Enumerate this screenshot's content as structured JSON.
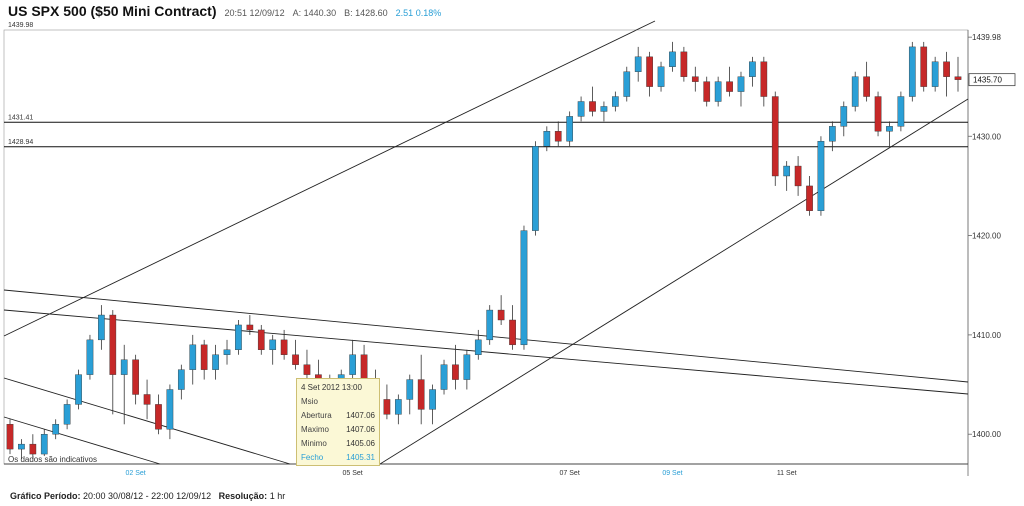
{
  "header": {
    "title": "US SPX 500 ($50 Mini Contract)",
    "time": "20:51 12/09/12",
    "ask": "A: 1440.30",
    "bid": "B: 1428.60",
    "change": "2.51 0.18%"
  },
  "tooltip": {
    "datetime": "4 Set 2012 13:00",
    "subtitle": "Msio",
    "rows": [
      {
        "label": "Abertura",
        "value": "1407.06"
      },
      {
        "label": "Maximo",
        "value": "1407.06"
      },
      {
        "label": "Minimo",
        "value": "1405.06"
      },
      {
        "label": "Fecho",
        "value": "1405.31"
      }
    ]
  },
  "footer": {
    "period_label": "Gráfico Período:",
    "period_value": "20:00 30/08/12 - 22:00 12/09/12",
    "resolution_label": "Resolução:",
    "resolution_value": "1 hr"
  },
  "chart_data": {
    "type": "candlestick",
    "y_ticks": [
      "1439.98",
      "1430.00",
      "1420.00",
      "1410.00",
      "1400.00"
    ],
    "ylim": [
      1397.0,
      1440.7
    ],
    "x_labels": [
      {
        "label": "02 Set",
        "index": 11,
        "accent": true
      },
      {
        "label": "05 Set",
        "index": 30,
        "accent": false
      },
      {
        "label": "07 Set",
        "index": 49,
        "accent": false
      },
      {
        "label": "09 Set",
        "index": 58,
        "accent": true
      },
      {
        "label": "11 Set",
        "index": 68,
        "accent": false
      }
    ],
    "last_price": "1435.70",
    "last_price_value": 1435.7,
    "top_label": "1439.98",
    "h_levels": [
      {
        "label": "1431.41",
        "value": 1431.41
      },
      {
        "label": "1428.94",
        "value": 1428.94
      }
    ],
    "note": "Os dados são indicativos",
    "candles": [
      [
        1401.0,
        1401.5,
        1398.0,
        1398.5
      ],
      [
        1398.5,
        1399.5,
        1397.5,
        1399.0
      ],
      [
        1399.0,
        1400.0,
        1397.5,
        1398.0
      ],
      [
        1398.0,
        1400.5,
        1397.8,
        1400.0
      ],
      [
        1400.0,
        1401.5,
        1399.5,
        1401.0
      ],
      [
        1401.0,
        1403.5,
        1400.5,
        1403.0
      ],
      [
        1403.0,
        1406.5,
        1402.5,
        1406.0
      ],
      [
        1406.0,
        1410.0,
        1405.5,
        1409.5
      ],
      [
        1409.5,
        1413.0,
        1408.5,
        1412.0
      ],
      [
        1412.0,
        1412.5,
        1402.0,
        1406.0
      ],
      [
        1406.0,
        1409.0,
        1401.0,
        1407.5
      ],
      [
        1407.5,
        1408.0,
        1403.0,
        1404.0
      ],
      [
        1404.0,
        1405.5,
        1401.5,
        1403.0
      ],
      [
        1403.0,
        1404.0,
        1400.0,
        1400.5
      ],
      [
        1400.5,
        1405.0,
        1399.5,
        1404.5
      ],
      [
        1404.5,
        1407.0,
        1403.5,
        1406.5
      ],
      [
        1406.5,
        1410.0,
        1405.0,
        1409.0
      ],
      [
        1409.0,
        1409.5,
        1405.5,
        1406.5
      ],
      [
        1406.5,
        1409.0,
        1405.5,
        1408.0
      ],
      [
        1408.0,
        1409.5,
        1407.0,
        1408.5
      ],
      [
        1408.5,
        1411.5,
        1408.0,
        1411.0
      ],
      [
        1411.0,
        1412.0,
        1410.0,
        1410.5
      ],
      [
        1410.5,
        1411.0,
        1408.0,
        1408.5
      ],
      [
        1408.5,
        1410.0,
        1407.0,
        1409.5
      ],
      [
        1409.5,
        1410.5,
        1407.5,
        1408.0
      ],
      [
        1408.0,
        1409.5,
        1406.5,
        1407.0
      ],
      [
        1407.0,
        1408.5,
        1405.5,
        1406.0
      ],
      [
        1406.0,
        1407.5,
        1404.5,
        1405.3
      ],
      [
        1405.3,
        1406.0,
        1403.0,
        1404.0
      ],
      [
        1404.0,
        1406.5,
        1403.5,
        1406.0
      ],
      [
        1406.0,
        1409.5,
        1405.5,
        1408.0
      ],
      [
        1408.0,
        1409.0,
        1405.0,
        1405.5
      ],
      [
        1405.5,
        1406.5,
        1403.0,
        1403.5
      ],
      [
        1403.5,
        1405.0,
        1401.5,
        1402.0
      ],
      [
        1402.0,
        1404.0,
        1401.0,
        1403.5
      ],
      [
        1403.5,
        1406.0,
        1402.0,
        1405.5
      ],
      [
        1405.5,
        1408.0,
        1401.0,
        1402.5
      ],
      [
        1402.5,
        1405.0,
        1401.0,
        1404.5
      ],
      [
        1404.5,
        1407.5,
        1404.0,
        1407.0
      ],
      [
        1407.0,
        1409.0,
        1404.5,
        1405.5
      ],
      [
        1405.5,
        1408.5,
        1404.5,
        1408.0
      ],
      [
        1408.0,
        1410.5,
        1407.5,
        1409.5
      ],
      [
        1409.5,
        1413.0,
        1409.0,
        1412.5
      ],
      [
        1412.5,
        1414.0,
        1411.0,
        1411.5
      ],
      [
        1411.5,
        1413.0,
        1408.5,
        1409.0
      ],
      [
        1409.0,
        1421.0,
        1408.5,
        1420.5
      ],
      [
        1420.5,
        1429.5,
        1420.0,
        1429.0
      ],
      [
        1429.0,
        1431.0,
        1428.5,
        1430.5
      ],
      [
        1430.5,
        1431.5,
        1429.0,
        1429.5
      ],
      [
        1429.5,
        1432.5,
        1429.0,
        1432.0
      ],
      [
        1432.0,
        1434.0,
        1431.5,
        1433.5
      ],
      [
        1433.5,
        1435.0,
        1432.0,
        1432.5
      ],
      [
        1432.5,
        1433.5,
        1431.5,
        1433.0
      ],
      [
        1433.0,
        1434.5,
        1432.5,
        1434.0
      ],
      [
        1434.0,
        1437.0,
        1433.5,
        1436.5
      ],
      [
        1436.5,
        1439.0,
        1435.5,
        1438.0
      ],
      [
        1438.0,
        1438.5,
        1434.0,
        1435.0
      ],
      [
        1435.0,
        1437.5,
        1434.5,
        1437.0
      ],
      [
        1437.0,
        1439.5,
        1436.5,
        1438.5
      ],
      [
        1438.5,
        1439.0,
        1435.5,
        1436.0
      ],
      [
        1436.0,
        1437.0,
        1434.5,
        1435.5
      ],
      [
        1435.5,
        1436.0,
        1433.0,
        1433.5
      ],
      [
        1433.5,
        1436.0,
        1433.0,
        1435.5
      ],
      [
        1435.5,
        1437.0,
        1434.0,
        1434.5
      ],
      [
        1434.5,
        1436.5,
        1433.0,
        1436.0
      ],
      [
        1436.0,
        1438.0,
        1435.0,
        1437.5
      ],
      [
        1437.5,
        1438.0,
        1433.0,
        1434.0
      ],
      [
        1434.0,
        1434.5,
        1425.0,
        1426.0
      ],
      [
        1426.0,
        1427.5,
        1424.5,
        1427.0
      ],
      [
        1427.0,
        1428.0,
        1424.0,
        1425.0
      ],
      [
        1425.0,
        1426.0,
        1422.0,
        1422.5
      ],
      [
        1422.5,
        1430.0,
        1422.0,
        1429.5
      ],
      [
        1429.5,
        1431.5,
        1428.5,
        1431.0
      ],
      [
        1431.0,
        1433.5,
        1430.0,
        1433.0
      ],
      [
        1433.0,
        1436.5,
        1432.5,
        1436.0
      ],
      [
        1436.0,
        1437.5,
        1433.5,
        1434.0
      ],
      [
        1434.0,
        1434.5,
        1430.0,
        1430.5
      ],
      [
        1430.5,
        1431.5,
        1429.0,
        1431.0
      ],
      [
        1431.0,
        1434.5,
        1430.5,
        1434.0
      ],
      [
        1434.0,
        1439.5,
        1433.5,
        1439.0
      ],
      [
        1439.0,
        1439.5,
        1434.5,
        1435.0
      ],
      [
        1435.0,
        1438.0,
        1434.5,
        1437.5
      ],
      [
        1437.5,
        1438.5,
        1434.0,
        1436.0
      ],
      [
        1436.0,
        1438.0,
        1434.5,
        1435.7
      ]
    ]
  }
}
